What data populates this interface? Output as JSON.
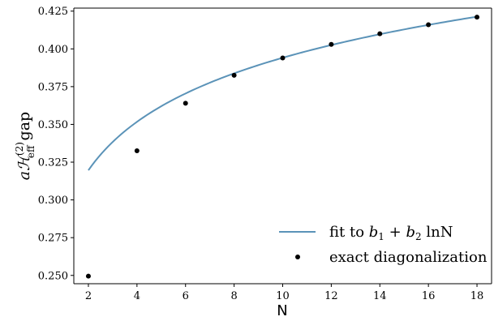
{
  "chart_data": {
    "type": "scatter",
    "title": "",
    "xlabel": "N",
    "ylabel": "gap",
    "ylabel_math": {
      "prefix": "a",
      "symbol": "ℋ",
      "sup": "(2)",
      "sub": "eff"
    },
    "xlim": [
      1.4,
      18.6
    ],
    "ylim": [
      0.2445,
      0.427
    ],
    "x_ticks": [
      2,
      4,
      6,
      8,
      10,
      12,
      14,
      16,
      18
    ],
    "y_ticks": [
      0.25,
      0.275,
      0.3,
      0.325,
      0.35,
      0.375,
      0.4,
      0.425
    ],
    "y_tick_labels": [
      "0.250",
      "0.275",
      "0.300",
      "0.325",
      "0.350",
      "0.375",
      "0.400",
      "0.425"
    ],
    "grid": false,
    "legend_position": "bottom-right",
    "series": [
      {
        "name": "fit to b1 + b2 lnN",
        "kind": "line",
        "color": "#5b93b8",
        "b1": 0.2875,
        "b2": 0.0463,
        "x_range": [
          2,
          18
        ]
      },
      {
        "name": "exact diagonalization",
        "kind": "scatter",
        "color": "#000000",
        "x": [
          2,
          4,
          6,
          8,
          10,
          12,
          14,
          16,
          18
        ],
        "y": [
          0.2495,
          0.3325,
          0.364,
          0.3825,
          0.394,
          0.403,
          0.41,
          0.416,
          0.421
        ]
      }
    ],
    "legend": {
      "fit_label_parts": [
        "fit to ",
        "b",
        "1",
        " + ",
        "b",
        "2",
        " lnN"
      ],
      "points_label": "exact diagonalization"
    }
  }
}
